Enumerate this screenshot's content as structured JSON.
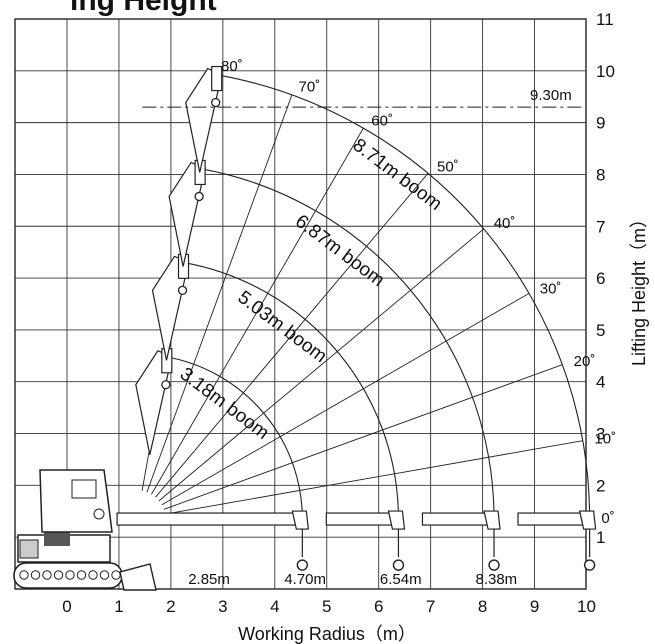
{
  "heading": "ing Height",
  "chart_data": {
    "type": "diagram",
    "xlabel": "Working Radius（m）",
    "ylabel": "Lifting Height（m）",
    "xlim": [
      -0.7,
      10
    ],
    "ylim": [
      0,
      11
    ],
    "grid": true,
    "x_ticks": [
      "0",
      "1",
      "2",
      "3",
      "4",
      "5",
      "6",
      "7",
      "8",
      "9",
      "10"
    ],
    "y_ticks": [
      "1",
      "2",
      "3",
      "4",
      "5",
      "6",
      "7",
      "8",
      "9",
      "10",
      "11"
    ],
    "pivot": [
      1.35,
      1.35
    ],
    "booms": [
      {
        "label": "3.18m boom",
        "length": 3.18
      },
      {
        "label": "5.03m boom",
        "length": 5.03
      },
      {
        "label": "6.87m boom",
        "length": 6.87
      },
      {
        "label": "8.71m boom",
        "length": 8.71
      }
    ],
    "angle_lines": [
      {
        "label": "0˚",
        "deg": 0
      },
      {
        "label": "10˚",
        "deg": 10
      },
      {
        "label": "20˚",
        "deg": 20
      },
      {
        "label": "30˚",
        "deg": 30
      },
      {
        "label": "40˚",
        "deg": 40
      },
      {
        "label": "50˚",
        "deg": 50
      },
      {
        "label": "60˚",
        "deg": 60
      },
      {
        "label": "70˚",
        "deg": 70
      },
      {
        "label": "80˚",
        "deg": 80
      }
    ],
    "max_radius_labels": [
      {
        "label": "2.85m",
        "x": 2.85
      },
      {
        "label": "4.70m",
        "x": 4.7
      },
      {
        "label": "6.54m",
        "x": 6.54
      },
      {
        "label": "8.38m",
        "x": 8.38
      }
    ],
    "max_height": {
      "label": "9.30m",
      "y": 9.3
    }
  }
}
